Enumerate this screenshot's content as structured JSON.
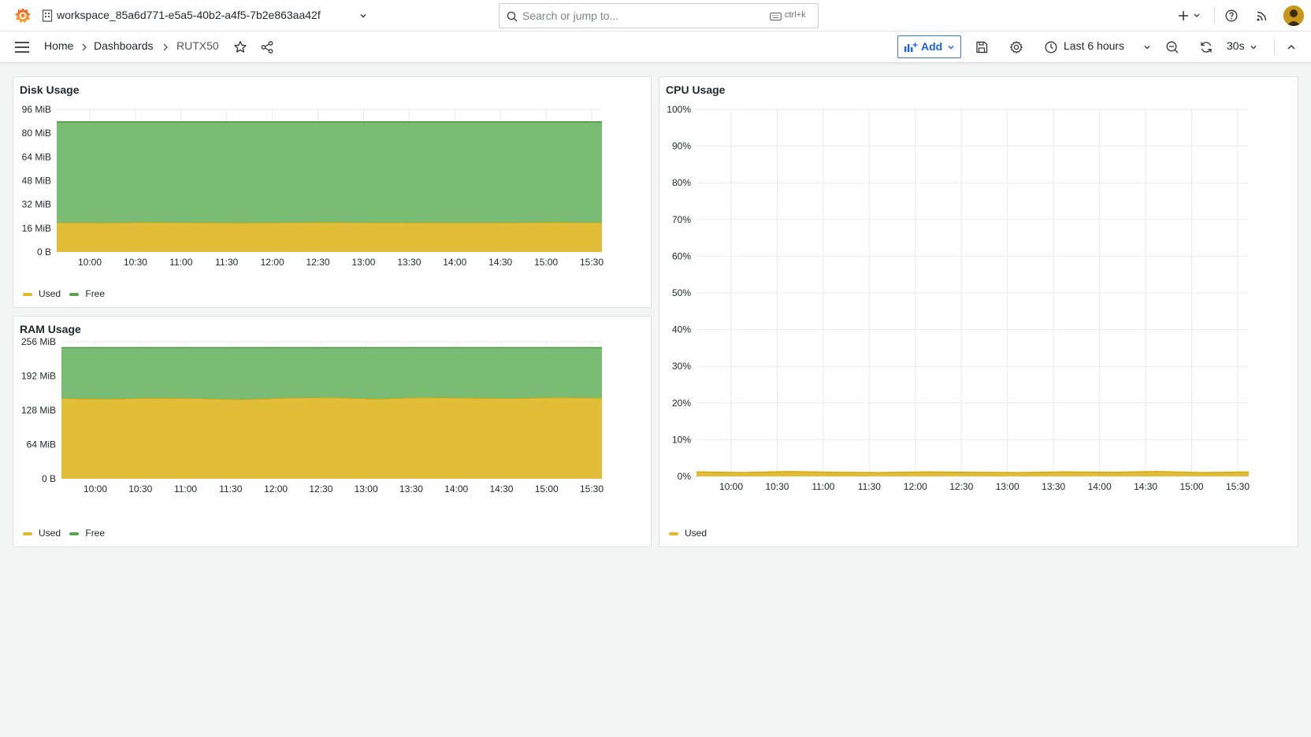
{
  "topbar": {
    "workspace_name": "workspace_85a6d771-e5a5-40b2-a4f5-7b2e863aa42f",
    "search_placeholder": "Search or jump to...",
    "search_shortcut": "ctrl+k"
  },
  "breadcrumb": {
    "home": "Home",
    "dashboards": "Dashboards",
    "current": "RUTX50"
  },
  "toolbar": {
    "add_label": "Add",
    "time_range": "Last 6 hours",
    "refresh_interval": "30s"
  },
  "colors": {
    "used": "#e0b92c",
    "free": "#73b86b",
    "used_line": "#d8a80e",
    "free_line": "#4f9a45",
    "accent": "#3d71d9"
  },
  "panels": {
    "disk": {
      "title": "Disk Usage",
      "legend": [
        "Used",
        "Free"
      ]
    },
    "ram": {
      "title": "RAM Usage",
      "legend": [
        "Used",
        "Free"
      ]
    },
    "cpu": {
      "title": "CPU Usage",
      "legend": [
        "Used"
      ]
    }
  },
  "chart_data": [
    {
      "id": "disk",
      "type": "area",
      "stacked": true,
      "title": "Disk Usage",
      "x_ticks": [
        "10:00",
        "10:30",
        "11:00",
        "11:30",
        "12:00",
        "12:30",
        "13:00",
        "13:30",
        "14:00",
        "14:30",
        "15:00",
        "15:30"
      ],
      "x_range": [
        "09:37",
        "15:37"
      ],
      "y_ticks": [
        "0 B",
        "16 MiB",
        "32 MiB",
        "48 MiB",
        "64 MiB",
        "80 MiB",
        "96 MiB"
      ],
      "ylim": [
        0,
        96
      ],
      "y_unit": "MiB",
      "series": [
        {
          "name": "Used",
          "values": [
            19.8,
            19.7,
            19.9,
            19.8,
            19.7,
            19.8,
            19.9,
            19.8,
            19.8,
            19.7,
            19.8,
            19.9,
            19.8
          ]
        },
        {
          "name": "Free",
          "values": [
            67.8,
            67.9,
            67.7,
            67.8,
            67.9,
            67.8,
            67.7,
            67.8,
            67.8,
            67.9,
            67.8,
            67.7,
            67.8
          ]
        }
      ],
      "grid": true,
      "legend_position": "bottom-left"
    },
    {
      "id": "ram",
      "type": "area",
      "stacked": true,
      "title": "RAM Usage",
      "x_ticks": [
        "10:00",
        "10:30",
        "11:00",
        "11:30",
        "12:00",
        "12:30",
        "13:00",
        "13:30",
        "14:00",
        "14:30",
        "15:00",
        "15:30"
      ],
      "x_range": [
        "09:37",
        "15:37"
      ],
      "y_ticks": [
        "0 B",
        "64 MiB",
        "128 MiB",
        "192 MiB",
        "256 MiB"
      ],
      "ylim": [
        0,
        256
      ],
      "y_unit": "MiB",
      "series": [
        {
          "name": "Used",
          "values": [
            150,
            149,
            151,
            150,
            148,
            151,
            152,
            149,
            152,
            151,
            150,
            152,
            151
          ]
        },
        {
          "name": "Free",
          "values": [
            95,
            96,
            94,
            95,
            97,
            94,
            93,
            96,
            93,
            94,
            95,
            93,
            94
          ]
        }
      ],
      "grid": true,
      "legend_position": "bottom-left"
    },
    {
      "id": "cpu",
      "type": "area",
      "title": "CPU Usage",
      "x_ticks": [
        "10:00",
        "10:30",
        "11:00",
        "11:30",
        "12:00",
        "12:30",
        "13:00",
        "13:30",
        "14:00",
        "14:30",
        "15:00",
        "15:30"
      ],
      "x_range": [
        "09:37",
        "15:37"
      ],
      "y_ticks": [
        "0%",
        "10%",
        "20%",
        "30%",
        "40%",
        "50%",
        "60%",
        "70%",
        "80%",
        "90%",
        "100%"
      ],
      "ylim": [
        0,
        100
      ],
      "y_unit": "%",
      "series": [
        {
          "name": "Used",
          "values": [
            1.2,
            1.0,
            1.3,
            1.1,
            1.0,
            1.2,
            1.1,
            1.0,
            1.2,
            1.1,
            1.3,
            1.0,
            1.2
          ]
        }
      ],
      "grid": true,
      "legend_position": "bottom-left"
    }
  ]
}
